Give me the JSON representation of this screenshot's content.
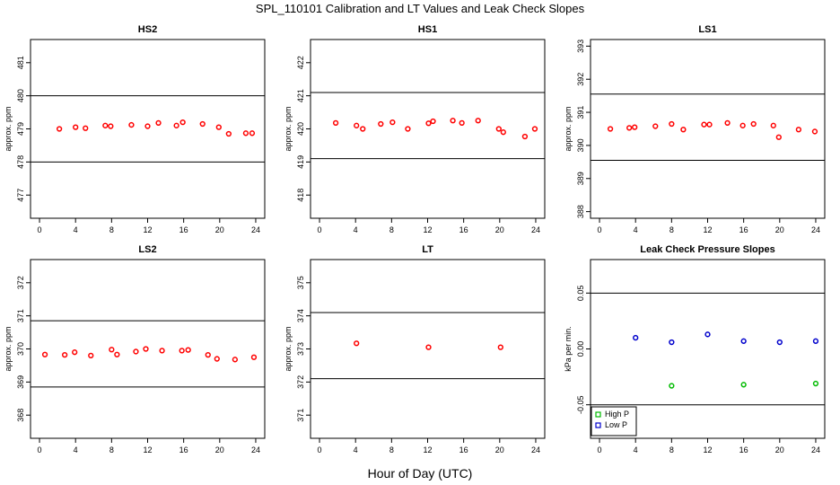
{
  "page": {
    "title": "SPL_110101  Calibration and LT Values and Leak Check Slopes",
    "xlabel": "Hour of Day (UTC)"
  },
  "chart_data": [
    {
      "type": "scatter",
      "title": "HS2",
      "ylabel": "approx. ppm",
      "xlim": [
        -1,
        25
      ],
      "ylim": [
        476.3,
        481.7
      ],
      "xticks": [
        0,
        4,
        8,
        12,
        16,
        20,
        24
      ],
      "yticks": [
        477,
        478,
        479,
        480,
        481
      ],
      "hlines": [
        478,
        480
      ],
      "series": [
        {
          "color": "#ff0000",
          "x": [
            2.2,
            4,
            5.1,
            7.3,
            7.9,
            10.2,
            12,
            13.2,
            15.2,
            15.9,
            18.1,
            19.9,
            21,
            22.9,
            23.6
          ],
          "y": [
            479.0,
            479.05,
            479.02,
            479.1,
            479.08,
            479.12,
            479.08,
            479.18,
            479.1,
            479.2,
            479.15,
            479.05,
            478.85,
            478.87,
            478.87
          ]
        }
      ]
    },
    {
      "type": "scatter",
      "title": "HS1",
      "ylabel": "approx. ppm",
      "xlim": [
        -1,
        25
      ],
      "ylim": [
        417.3,
        422.7
      ],
      "xticks": [
        0,
        4,
        8,
        12,
        16,
        20,
        24
      ],
      "yticks": [
        418,
        419,
        420,
        421,
        422
      ],
      "hlines": [
        419.1,
        421.1
      ],
      "series": [
        {
          "color": "#ff0000",
          "x": [
            1.8,
            4.1,
            4.8,
            6.8,
            8.1,
            9.8,
            12.1,
            12.6,
            14.8,
            15.8,
            17.6,
            19.9,
            20.4,
            22.8,
            23.9
          ],
          "y": [
            420.18,
            420.1,
            420.0,
            420.15,
            420.2,
            420.0,
            420.17,
            420.23,
            420.25,
            420.18,
            420.25,
            420.0,
            419.9,
            419.77,
            420.0
          ]
        }
      ]
    },
    {
      "type": "scatter",
      "title": "LS1",
      "ylabel": "approx. ppm",
      "xlim": [
        -1,
        25
      ],
      "ylim": [
        387.8,
        393.2
      ],
      "xticks": [
        0,
        4,
        8,
        12,
        16,
        20,
        24
      ],
      "yticks": [
        388,
        389,
        390,
        391,
        392,
        393
      ],
      "hlines": [
        389.55,
        391.55
      ],
      "series": [
        {
          "color": "#ff0000",
          "x": [
            1.2,
            3.3,
            3.9,
            6.2,
            8,
            9.3,
            11.6,
            12.2,
            14.2,
            15.9,
            17.1,
            19.3,
            19.9,
            22.1,
            23.9
          ],
          "y": [
            390.5,
            390.53,
            390.55,
            390.58,
            390.65,
            390.48,
            390.63,
            390.63,
            390.68,
            390.6,
            390.65,
            390.6,
            390.25,
            390.48,
            390.42
          ]
        }
      ]
    },
    {
      "type": "scatter",
      "title": "LS2",
      "ylabel": "approx. ppm",
      "xlim": [
        -1,
        25
      ],
      "ylim": [
        367.3,
        372.7
      ],
      "xticks": [
        0,
        4,
        8,
        12,
        16,
        20,
        24
      ],
      "yticks": [
        368,
        369,
        370,
        371,
        372
      ],
      "hlines": [
        368.85,
        370.85
      ],
      "series": [
        {
          "color": "#ff0000",
          "x": [
            0.6,
            2.8,
            3.9,
            5.7,
            8,
            8.6,
            10.7,
            11.8,
            13.6,
            15.8,
            16.5,
            18.7,
            19.7,
            21.7,
            23.8
          ],
          "y": [
            369.83,
            369.82,
            369.9,
            369.8,
            369.98,
            369.83,
            369.92,
            370.0,
            369.95,
            369.95,
            369.97,
            369.82,
            369.7,
            369.68,
            369.75
          ]
        }
      ]
    },
    {
      "type": "scatter",
      "title": "LT",
      "ylabel": "approx. ppm",
      "xlim": [
        -1,
        25
      ],
      "ylim": [
        370.3,
        375.7
      ],
      "xticks": [
        0,
        4,
        8,
        12,
        16,
        20,
        24
      ],
      "yticks": [
        371,
        372,
        373,
        374,
        375
      ],
      "hlines": [
        372.1,
        374.1
      ],
      "series": [
        {
          "color": "#ff0000",
          "x": [
            4.1,
            12.1,
            20.1
          ],
          "y": [
            373.17,
            373.05,
            373.05
          ]
        }
      ]
    },
    {
      "type": "scatter",
      "title": "Leak Check Pressure Slopes",
      "ylabel": "kPa per min.",
      "xlim": [
        -1,
        25
      ],
      "ylim": [
        -0.08,
        0.08
      ],
      "xticks": [
        0,
        4,
        8,
        12,
        16,
        20,
        24
      ],
      "yticks": [
        -0.05,
        0.0,
        0.05
      ],
      "ytick_labels": [
        "-0.05",
        "0.00",
        "0.05"
      ],
      "hlines": [
        -0.05,
        0.05
      ],
      "legend": {
        "position": "bottom-left"
      },
      "series": [
        {
          "name": "High P",
          "color": "#00bb00",
          "x": [
            8,
            16,
            24
          ],
          "y": [
            -0.033,
            -0.032,
            -0.031
          ]
        },
        {
          "name": "Low P",
          "color": "#0000cc",
          "x": [
            4,
            8,
            12,
            16,
            20,
            24
          ],
          "y": [
            0.01,
            0.006,
            0.013,
            0.007,
            0.006,
            0.007
          ]
        }
      ]
    }
  ]
}
